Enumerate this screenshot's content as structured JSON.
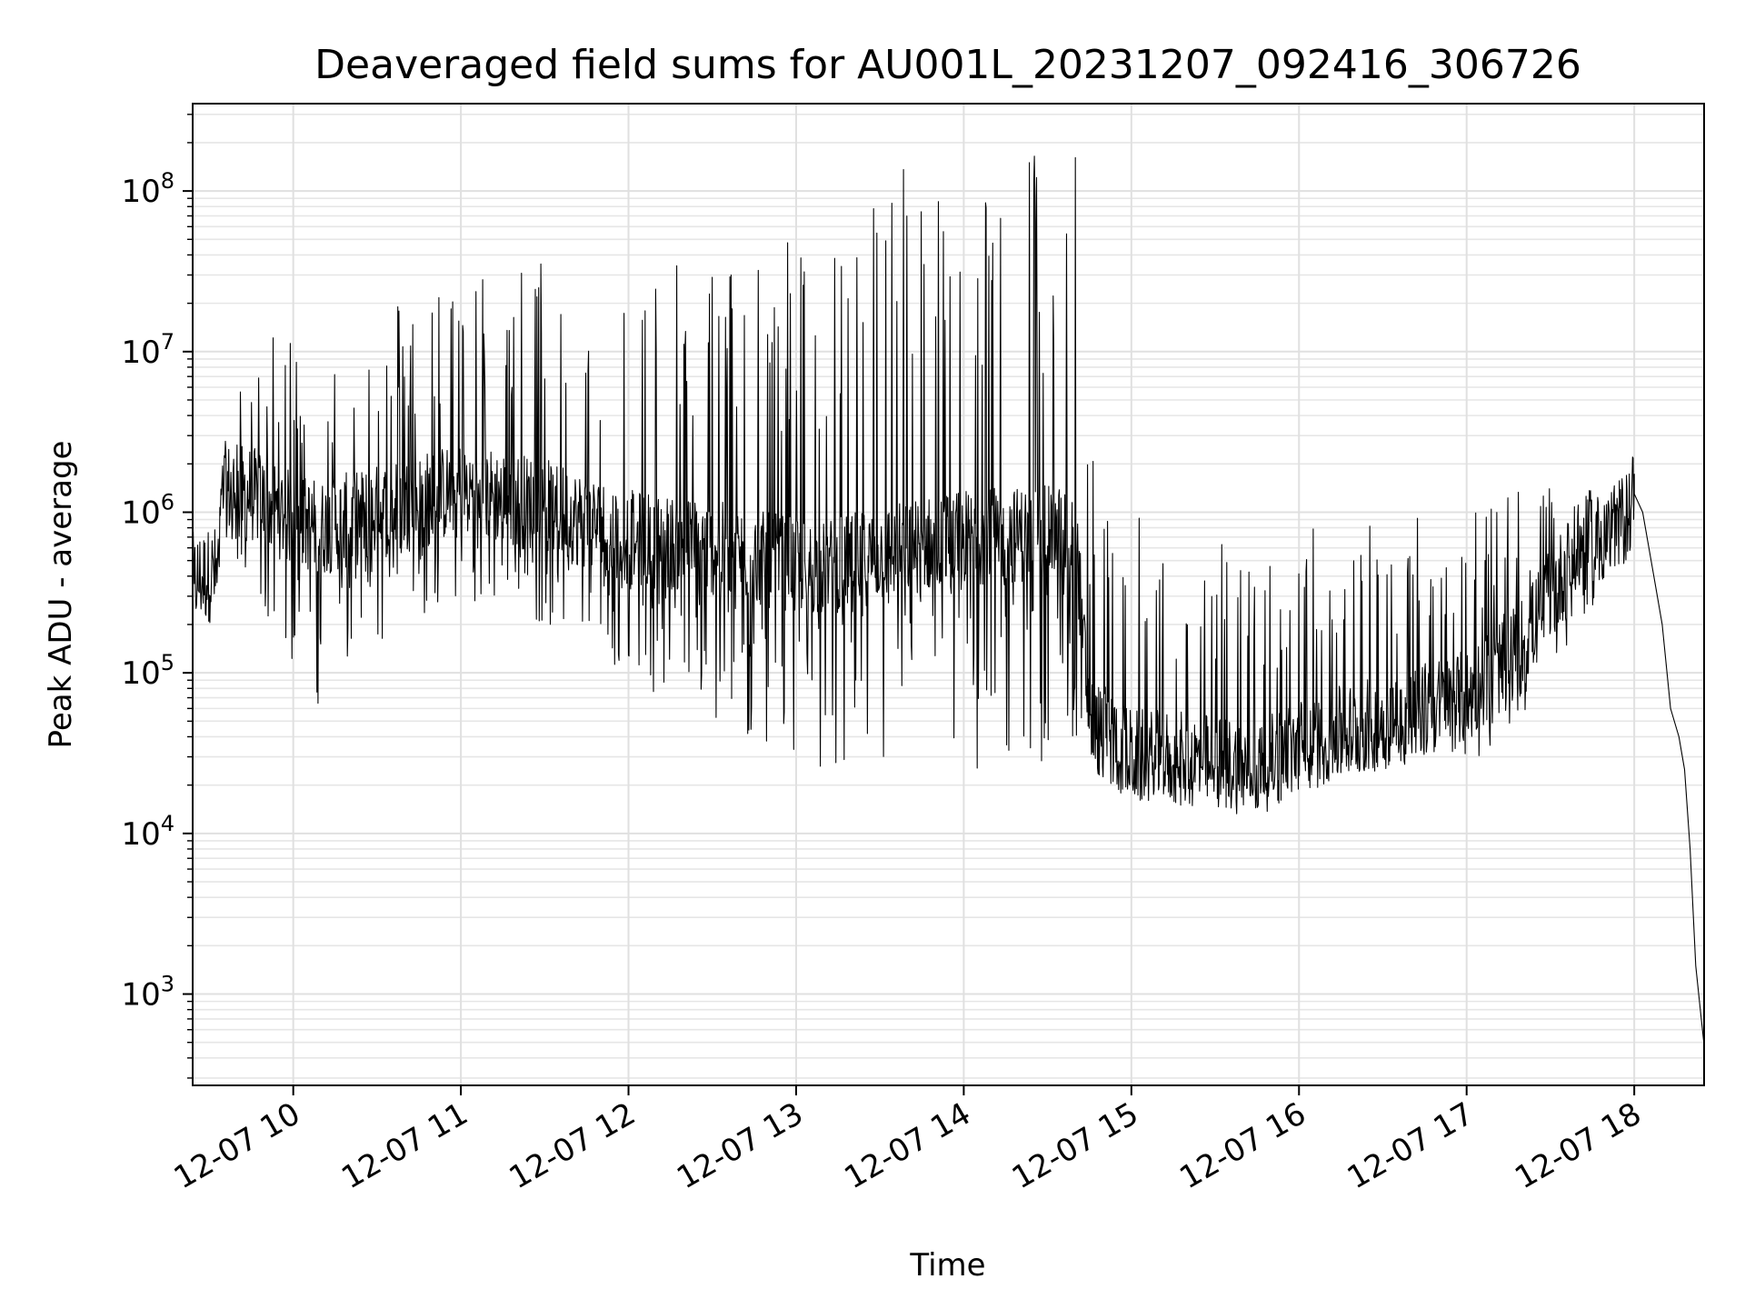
{
  "chart_data": {
    "type": "line",
    "title": "Deaveraged field sums for AU001L_20231207_092416_306726",
    "xlabel": "Time",
    "ylabel": "Peak ADU - average",
    "yscale": "log",
    "ylim": [
      270,
      350000000
    ],
    "xlim": [
      "2023-12-07 09:24",
      "2023-12-07 18:25"
    ],
    "grid": true,
    "x_ticks": [
      {
        "value": "2023-12-07 10:00",
        "label": "12-07 10"
      },
      {
        "value": "2023-12-07 11:00",
        "label": "12-07 11"
      },
      {
        "value": "2023-12-07 12:00",
        "label": "12-07 12"
      },
      {
        "value": "2023-12-07 13:00",
        "label": "12-07 13"
      },
      {
        "value": "2023-12-07 14:00",
        "label": "12-07 14"
      },
      {
        "value": "2023-12-07 15:00",
        "label": "12-07 15"
      },
      {
        "value": "2023-12-07 16:00",
        "label": "12-07 16"
      },
      {
        "value": "2023-12-07 17:00",
        "label": "12-07 17"
      },
      {
        "value": "2023-12-07 18:00",
        "label": "12-07 18"
      }
    ],
    "y_ticks": [
      {
        "value": 1000,
        "base": "10",
        "exp": "3"
      },
      {
        "value": 10000,
        "base": "10",
        "exp": "4"
      },
      {
        "value": 100000,
        "base": "10",
        "exp": "5"
      },
      {
        "value": 1000000,
        "base": "10",
        "exp": "6"
      },
      {
        "value": 10000000,
        "base": "10",
        "exp": "7"
      },
      {
        "value": 100000000,
        "base": "10",
        "exp": "8"
      }
    ],
    "series": [
      {
        "color": "#000000",
        "envelope": [
          {
            "t": "2023-12-07 09:24",
            "low": 280000,
            "high": 500000,
            "base": 380000
          },
          {
            "t": "2023-12-07 09:33",
            "low": 300000,
            "high": 550000,
            "base": 420000
          },
          {
            "t": "2023-12-07 09:35",
            "low": 600000,
            "high": 3000000,
            "base": 1400000
          },
          {
            "t": "2023-12-07 09:45",
            "low": 350000,
            "high": 10000000,
            "base": 1300000
          },
          {
            "t": "2023-12-07 10:00",
            "low": 100000,
            "high": 15000000,
            "base": 900000
          },
          {
            "t": "2023-12-07 10:10",
            "low": 60000,
            "high": 8000000,
            "base": 800000
          },
          {
            "t": "2023-12-07 10:30",
            "low": 150000,
            "high": 20000000,
            "base": 1000000
          },
          {
            "t": "2023-12-07 11:00",
            "low": 300000,
            "high": 30000000,
            "base": 1400000
          },
          {
            "t": "2023-12-07 11:30",
            "low": 200000,
            "high": 40000000,
            "base": 1100000
          },
          {
            "t": "2023-12-07 12:00",
            "low": 100000,
            "high": 30000000,
            "base": 700000
          },
          {
            "t": "2023-12-07 12:30",
            "low": 40000,
            "high": 40000000,
            "base": 600000
          },
          {
            "t": "2023-12-07 12:50",
            "low": 30000,
            "high": 50000000,
            "base": 500000
          },
          {
            "t": "2023-12-07 13:10",
            "low": 20000,
            "high": 60000000,
            "base": 450000
          },
          {
            "t": "2023-12-07 13:40",
            "low": 25000,
            "high": 200000000,
            "base": 600000
          },
          {
            "t": "2023-12-07 14:00",
            "low": 20000,
            "high": 200000000,
            "base": 700000
          },
          {
            "t": "2023-12-07 14:40",
            "low": 25000,
            "high": 200000000,
            "base": 750000
          },
          {
            "t": "2023-12-07 14:45",
            "low": 20000,
            "high": 3000000,
            "base": 50000
          },
          {
            "t": "2023-12-07 15:00",
            "low": 18000,
            "high": 1000000,
            "base": 30000
          },
          {
            "t": "2023-12-07 15:30",
            "low": 16000,
            "high": 700000,
            "base": 28000
          },
          {
            "t": "2023-12-07 15:45",
            "low": 16000,
            "high": 500000,
            "base": 25000
          },
          {
            "t": "2023-12-07 16:00",
            "low": 20000,
            "high": 800000,
            "base": 35000
          },
          {
            "t": "2023-12-07 16:30",
            "low": 25000,
            "high": 1000000,
            "base": 50000
          },
          {
            "t": "2023-12-07 17:00",
            "low": 28000,
            "high": 1200000,
            "base": 70000
          },
          {
            "t": "2023-12-07 17:20",
            "low": 40000,
            "high": 1400000,
            "base": 150000
          },
          {
            "t": "2023-12-07 17:40",
            "low": 200000,
            "high": 1400000,
            "base": 600000
          },
          {
            "t": "2023-12-07 17:55",
            "low": 450000,
            "high": 1300000,
            "base": 800000
          },
          {
            "t": "2023-12-07 18:00",
            "low": 1100000,
            "high": 1500000,
            "base": 1300000
          }
        ],
        "tail": [
          {
            "t": "2023-12-07 18:00",
            "y": 1300000
          },
          {
            "t": "2023-12-07 18:03",
            "y": 1000000
          },
          {
            "t": "2023-12-07 18:07",
            "y": 400000
          },
          {
            "t": "2023-12-07 18:10",
            "y": 200000
          },
          {
            "t": "2023-12-07 18:13",
            "y": 60000
          },
          {
            "t": "2023-12-07 18:16",
            "y": 40000
          },
          {
            "t": "2023-12-07 18:18",
            "y": 25000
          },
          {
            "t": "2023-12-07 18:20",
            "y": 8000
          },
          {
            "t": "2023-12-07 18:22",
            "y": 1500
          },
          {
            "t": "2023-12-07 18:24",
            "y": 700
          },
          {
            "t": "2023-12-07 18:25",
            "y": 480
          }
        ]
      }
    ]
  }
}
